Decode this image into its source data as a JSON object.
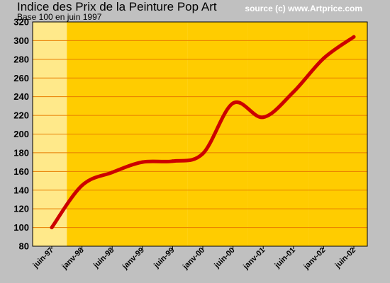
{
  "chart_data": {
    "type": "line",
    "title": "Indice des Prix de la Peinture Pop Art",
    "subtitle": "Base 100 en juin 1997",
    "source": "source (c) www.Artprice.com",
    "xlabel": "",
    "ylabel": "",
    "ylim": [
      80,
      320
    ],
    "yticks": [
      80,
      100,
      120,
      140,
      160,
      180,
      200,
      220,
      240,
      260,
      280,
      300,
      320
    ],
    "categories": [
      "juin-97",
      "janv-98",
      "juin-98",
      "janv-99",
      "juin-99",
      "janv-00",
      "juin-00",
      "janv-01",
      "juin-01",
      "janv-02",
      "juin-02"
    ],
    "series": [
      {
        "color": "#cc0000",
        "values": [
          100,
          145,
          159,
          170,
          171,
          179,
          233,
          218,
          245,
          281,
          304
        ]
      }
    ],
    "grid": true,
    "colors": {
      "background": "#c0c0c0",
      "band_light": "#ffe98a",
      "band_dark": "#ffcc00",
      "gridline": "#e87c00",
      "line": "#cc0000"
    }
  }
}
